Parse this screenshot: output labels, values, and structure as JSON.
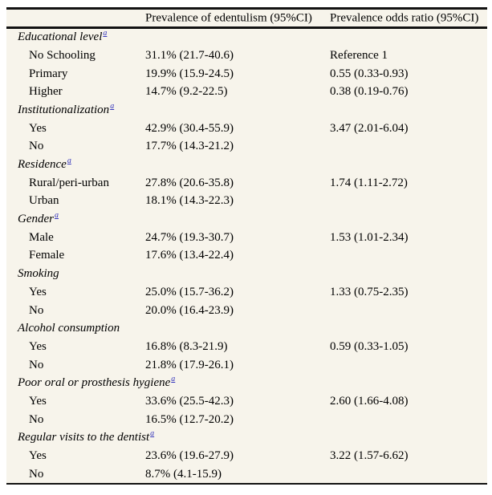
{
  "table": {
    "header": {
      "col1": "",
      "col2": "Prevalence of edentulism (95%CI)",
      "col3": "Prevalence odds ratio (95%CI)"
    },
    "footnote_marker": "a",
    "groups": [
      {
        "label": "Educational level",
        "footnote": "a",
        "rows": [
          {
            "label": "No Schooling",
            "prevalence": "31.1% (21.7-40.6)",
            "odds_ratio": "Reference 1"
          },
          {
            "label": "Primary",
            "prevalence": "19.9% (15.9-24.5)",
            "odds_ratio": "0.55 (0.33-0.93)"
          },
          {
            "label": "Higher",
            "prevalence": "14.7% (9.2-22.5)",
            "odds_ratio": "0.38 (0.19-0.76)"
          }
        ]
      },
      {
        "label": "Institutionalization",
        "footnote": "a",
        "rows": [
          {
            "label": "Yes",
            "prevalence": "42.9% (30.4-55.9)",
            "odds_ratio": "3.47 (2.01-6.04)"
          },
          {
            "label": "No",
            "prevalence": "17.7% (14.3-21.2)",
            "odds_ratio": ""
          }
        ]
      },
      {
        "label": "Residence",
        "footnote": "a",
        "rows": [
          {
            "label": "Rural/peri-urban",
            "prevalence": "27.8% (20.6-35.8)",
            "odds_ratio": "1.74 (1.11-2.72)"
          },
          {
            "label": "Urban",
            "prevalence": "18.1% (14.3-22.3)",
            "odds_ratio": ""
          }
        ]
      },
      {
        "label": "Gender",
        "footnote": "a",
        "rows": [
          {
            "label": "Male",
            "prevalence": "24.7% (19.3-30.7)",
            "odds_ratio": "1.53 (1.01-2.34)"
          },
          {
            "label": "Female",
            "prevalence": "17.6% (13.4-22.4)",
            "odds_ratio": ""
          }
        ]
      },
      {
        "label": "Smoking",
        "footnote": "",
        "rows": [
          {
            "label": "Yes",
            "prevalence": "25.0% (15.7-36.2)",
            "odds_ratio": "1.33 (0.75-2.35)"
          },
          {
            "label": "No",
            "prevalence": "20.0% (16.4-23.9)",
            "odds_ratio": ""
          }
        ]
      },
      {
        "label": "Alcohol consumption",
        "footnote": "",
        "rows": [
          {
            "label": "Yes",
            "prevalence": "16.8% (8.3-21.9)",
            "odds_ratio": "0.59 (0.33-1.05)"
          },
          {
            "label": "No",
            "prevalence": "21.8% (17.9-26.1)",
            "odds_ratio": ""
          }
        ]
      },
      {
        "label": "Poor oral or prosthesis hygiene",
        "footnote": "a",
        "rows": [
          {
            "label": "Yes",
            "prevalence": "33.6% (25.5-42.3)",
            "odds_ratio": "2.60 (1.66-4.08)"
          },
          {
            "label": "No",
            "prevalence": "16.5% (12.7-20.2)",
            "odds_ratio": ""
          }
        ]
      },
      {
        "label": "Regular visits to the dentist",
        "footnote": "a",
        "rows": [
          {
            "label": "Yes",
            "prevalence": "23.6% (19.6-27.9)",
            "odds_ratio": "3.22 (1.57-6.62)"
          },
          {
            "label": "No",
            "prevalence": "8.7% (4.1-15.9)",
            "odds_ratio": ""
          }
        ]
      }
    ],
    "colors": {
      "table_background": "#f7f4eb",
      "rule": "#121212",
      "footnote_link": "#3434bb",
      "text": "#000000"
    }
  }
}
